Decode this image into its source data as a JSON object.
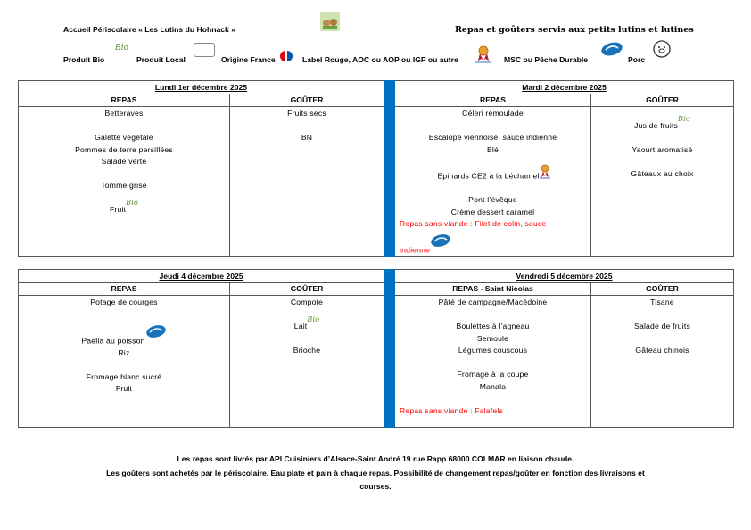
{
  "header": {
    "left_title": "Accueil Périscolaire  « Les Lutins du Hohnack »",
    "right_title": "Repas et goûters servis aux petits lutins et lutines",
    "legend": [
      {
        "label": "Produit Bio",
        "icon": "bio-icon"
      },
      {
        "label": "Produit Local",
        "icon": "produit-local-icon"
      },
      {
        "label": "Origine France",
        "icon": "france-flag-icon"
      },
      {
        "label": "Label Rouge, AOC ou AOP ou IGP ou autre",
        "icon": "label-rouge-medal-icon"
      },
      {
        "label": "MSC ou Pêche Durable",
        "icon": "msc-fish-icon"
      },
      {
        "label": "Porc",
        "icon": "pig-icon"
      }
    ],
    "bio_text": "Bio"
  },
  "colors": {
    "accent_bar": "#0070c0",
    "red_text": "#ff0000",
    "bio_green": "#5a8a2a"
  },
  "days": [
    {
      "title": "Lundi 1er décembre 2025",
      "columns": [
        {
          "head": "REPAS",
          "lines": [
            {
              "text": "Betteraves"
            },
            {
              "text": ""
            },
            {
              "text": "Galette végétale"
            },
            {
              "text": "Pommes de terre persillées"
            },
            {
              "text": "Salade verte"
            },
            {
              "text": ""
            },
            {
              "text": "Tomme grise"
            },
            {
              "text": ""
            },
            {
              "text": "Fruit",
              "icon": "bio"
            }
          ]
        },
        {
          "head": "GOÛTER",
          "lines": [
            {
              "text": "Fruits secs"
            },
            {
              "text": ""
            },
            {
              "text": "BN"
            }
          ]
        }
      ]
    },
    {
      "title": "Mardi 2 décembre 2025",
      "columns": [
        {
          "head": "REPAS",
          "lines": [
            {
              "text": "Céleri rémoulade"
            },
            {
              "text": ""
            },
            {
              "text": "Escalope viennoise, sauce indienne"
            },
            {
              "text": "Blé"
            },
            {
              "text": ""
            },
            {
              "text": "Epinards CE2 à la béchamel",
              "icon": "medal"
            },
            {
              "text": ""
            },
            {
              "text": "Pont l’évêque"
            },
            {
              "text": "Crème dessert caramel"
            },
            {
              "text": "Repas sans viande : Filet de colin, sauce",
              "red": true
            },
            {
              "text": "",
              "red": true
            },
            {
              "text": "indienne",
              "red": true,
              "icon": "msc"
            }
          ]
        },
        {
          "head": "GOÛTER",
          "lines": [
            {
              "text": ""
            },
            {
              "text": "Jus de fruits",
              "icon": "bio"
            },
            {
              "text": ""
            },
            {
              "text": "Yaourt aromatisé"
            },
            {
              "text": ""
            },
            {
              "text": "Gâteaux au choix"
            }
          ]
        }
      ]
    },
    {
      "title": "Jeudi 4 décembre 2025",
      "columns": [
        {
          "head": "REPAS",
          "lines": [
            {
              "text": "Potage de courges"
            },
            {
              "text": ""
            },
            {
              "text": ""
            },
            {
              "text": "Paëlla au poisson",
              "icon": "msc"
            },
            {
              "text": "Riz"
            },
            {
              "text": ""
            },
            {
              "text": "Fromage blanc sucré"
            },
            {
              "text": "Fruit"
            }
          ]
        },
        {
          "head": "GOÛTER",
          "lines": [
            {
              "text": "Compote"
            },
            {
              "text": ""
            },
            {
              "text": "Lait",
              "icon": "bio"
            },
            {
              "text": ""
            },
            {
              "text": "Brioche"
            }
          ]
        }
      ]
    },
    {
      "title": "Vendredi 5 décembre 2025",
      "columns": [
        {
          "head": "REPAS - Saint Nicolas",
          "lines": [
            {
              "text": "Pâté de campagne/Macédoine"
            },
            {
              "text": ""
            },
            {
              "text": "Boulettes à l’agneau"
            },
            {
              "text": "Semoule"
            },
            {
              "text": "Légumes couscous"
            },
            {
              "text": ""
            },
            {
              "text": "Fromage à la coupe"
            },
            {
              "text": "Manala"
            },
            {
              "text": ""
            },
            {
              "text": "Repas sans viande : Falafels",
              "red": true
            }
          ]
        },
        {
          "head": "GOÛTER",
          "lines": [
            {
              "text": "Tisane"
            },
            {
              "text": ""
            },
            {
              "text": "Salade de fruits"
            },
            {
              "text": ""
            },
            {
              "text": "Gâteau chinois"
            }
          ]
        }
      ]
    }
  ],
  "footer": {
    "line1": "Les repas sont livrés par API Cuisiniers d’Alsace-Saint André 19 rue Rapp 68000 COLMAR en liaison chaude.",
    "line2": "Les goûters sont achetés par le périscolaire. Eau plate et pain à chaque repas. Possibilité de changement repas/goûter en fonction des livraisons et",
    "line3": "courses."
  }
}
